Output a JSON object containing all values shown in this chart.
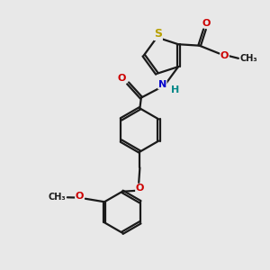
{
  "bg_color": "#e8e8e8",
  "bond_color": "#1a1a1a",
  "bond_width": 1.6,
  "S_color": "#b8a000",
  "N_color": "#0000cc",
  "O_color": "#cc0000",
  "H_color": "#008888",
  "font_size": 8,
  "fig_size": [
    3.0,
    3.0
  ],
  "dpi": 100,
  "xlim": [
    0,
    10
  ],
  "ylim": [
    0,
    10
  ]
}
